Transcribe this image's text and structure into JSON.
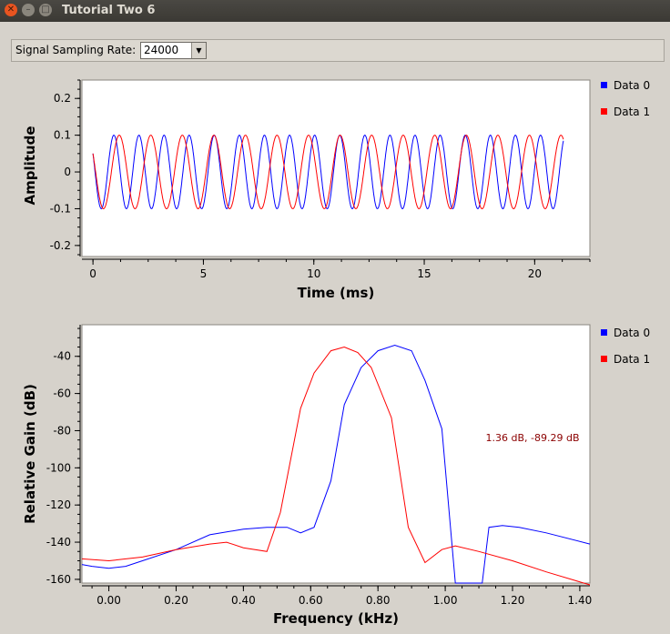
{
  "window": {
    "title": "Tutorial Two 6"
  },
  "toolbar": {
    "rate_label": "Signal Sampling Rate:",
    "rate_value": "24000"
  },
  "colors": {
    "series0": "#0000ff",
    "series1": "#ff0000",
    "marker": "#8b0000"
  },
  "chart_data": [
    {
      "type": "line",
      "xlabel": "Time (ms)",
      "ylabel": "Amplitude",
      "xlim": [
        -0.5,
        22.5
      ],
      "ylim": [
        -0.23,
        0.25
      ],
      "xticks": [
        0,
        5,
        10,
        15,
        20
      ],
      "yticks": [
        0.2,
        0.1,
        0,
        -0.1,
        -0.2
      ],
      "ytick_labels": [
        "0.2",
        "0.1",
        "0",
        "-0.1",
        "-0.2"
      ],
      "legend_position": "right",
      "series": [
        {
          "name": "Data 0",
          "amplitude": 0.1,
          "frequency_khz": 0.88,
          "phase_start_deg": 60,
          "x_range": [
            0,
            21.3
          ]
        },
        {
          "name": "Data 1",
          "amplitude": 0.1,
          "frequency_khz": 0.7,
          "phase_start_deg": 60,
          "x_range": [
            0,
            21.3
          ]
        }
      ]
    },
    {
      "type": "line",
      "xlabel": "Frequency (kHz)",
      "ylabel": "Relative Gain (dB)",
      "xlim": [
        -0.08,
        1.43
      ],
      "ylim": [
        -162,
        -23
      ],
      "xticks": [
        0.0,
        0.2,
        0.4,
        0.6,
        0.8,
        1.0,
        1.2,
        1.4
      ],
      "xtick_labels": [
        "0.00",
        "0.20",
        "0.40",
        "0.60",
        "0.80",
        "1.00",
        "1.20",
        "1.40"
      ],
      "yticks": [
        -40,
        -60,
        -80,
        -100,
        -120,
        -140,
        -160
      ],
      "legend_position": "right",
      "annotation": "1.36 dB, -89.29 dB",
      "series": [
        {
          "name": "Data 0",
          "x": [
            -0.08,
            -0.05,
            0.0,
            0.05,
            0.1,
            0.2,
            0.3,
            0.4,
            0.47,
            0.53,
            0.57,
            0.61,
            0.66,
            0.7,
            0.75,
            0.8,
            0.85,
            0.9,
            0.94,
            0.99,
            1.03,
            1.08,
            1.11,
            1.13,
            1.17,
            1.22,
            1.3,
            1.43
          ],
          "y": [
            -152,
            -153,
            -154,
            -153,
            -150,
            -144,
            -136,
            -133,
            -132,
            -132,
            -135,
            -132,
            -107,
            -66,
            -46,
            -37,
            -34,
            -37,
            -53,
            -79,
            -162,
            -162,
            -162,
            -132,
            -131,
            -132,
            -135,
            -141
          ]
        },
        {
          "name": "Data 1",
          "x": [
            -0.08,
            0.0,
            0.1,
            0.2,
            0.3,
            0.35,
            0.4,
            0.47,
            0.51,
            0.57,
            0.61,
            0.66,
            0.7,
            0.74,
            0.78,
            0.84,
            0.89,
            0.94,
            0.99,
            1.03,
            1.1,
            1.2,
            1.3,
            1.43
          ],
          "y": [
            -149,
            -150,
            -148,
            -144,
            -141,
            -140,
            -143,
            -145,
            -124,
            -68,
            -49,
            -37,
            -35,
            -38,
            -46,
            -73,
            -132,
            -151,
            -144,
            -142,
            -145,
            -150,
            -156,
            -163
          ]
        }
      ]
    }
  ]
}
